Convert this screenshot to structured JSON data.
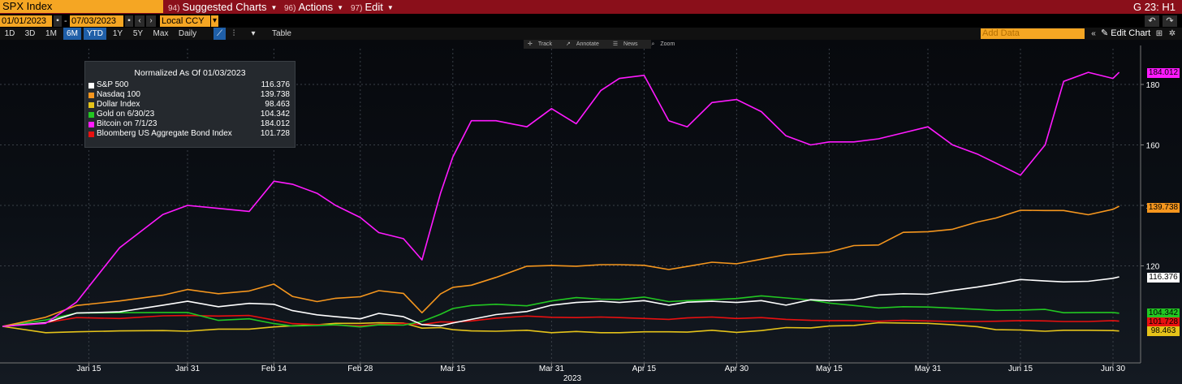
{
  "toolbar": {
    "security": "SPX Index",
    "menus": [
      {
        "num": "94)",
        "label": "Suggested Charts"
      },
      {
        "num": "96)",
        "label": "Actions"
      },
      {
        "num": "97)",
        "label": "Edit"
      }
    ],
    "page_id": "G 23: H1"
  },
  "date_range": {
    "start": "01/01/2023",
    "end": "07/03/2023",
    "currency": "Local CCY"
  },
  "periods": [
    {
      "label": "1D",
      "active": false
    },
    {
      "label": "3D",
      "active": false
    },
    {
      "label": "1M",
      "active": false
    },
    {
      "label": "6M",
      "active": true
    },
    {
      "label": "YTD",
      "active": true
    },
    {
      "label": "1Y",
      "active": false
    },
    {
      "label": "5Y",
      "active": false
    },
    {
      "label": "Max",
      "active": false
    }
  ],
  "frequency": "Daily",
  "table_label": "Table",
  "add_data_placeholder": "Add Data",
  "edit_chart_label": "Edit Chart",
  "chart_tools": [
    "Track",
    "Annotate",
    "News",
    "Zoom"
  ],
  "chart_data": {
    "type": "line",
    "title": "Normalized As Of 01/03/2023",
    "xlabel": "2023",
    "x_ticks": [
      "Jan 15",
      "Jan 31",
      "Feb 14",
      "Feb 28",
      "Mar 15",
      "Mar 31",
      "Apr 15",
      "Apr 30",
      "May 15",
      "May 31",
      "Jun 15",
      "Jun 30"
    ],
    "y_ticks": [
      120,
      140,
      160,
      180
    ],
    "ylim": [
      94,
      190
    ],
    "grid": true,
    "legend_position": "top-left",
    "x_dates": [
      "2023-01-01",
      "2023-01-08",
      "2023-01-13",
      "2023-01-20",
      "2023-01-27",
      "2023-01-31",
      "2023-02-05",
      "2023-02-10",
      "2023-02-14",
      "2023-02-17",
      "2023-02-21",
      "2023-02-24",
      "2023-02-28",
      "2023-03-03",
      "2023-03-07",
      "2023-03-10",
      "2023-03-13",
      "2023-03-15",
      "2023-03-18",
      "2023-03-22",
      "2023-03-27",
      "2023-03-31",
      "2023-04-04",
      "2023-04-08",
      "2023-04-11",
      "2023-04-15",
      "2023-04-19",
      "2023-04-22",
      "2023-04-26",
      "2023-04-30",
      "2023-05-04",
      "2023-05-08",
      "2023-05-12",
      "2023-05-15",
      "2023-05-19",
      "2023-05-23",
      "2023-05-27",
      "2023-05-31",
      "2023-06-04",
      "2023-06-08",
      "2023-06-11",
      "2023-06-15",
      "2023-06-19",
      "2023-06-22",
      "2023-06-26",
      "2023-06-30",
      "2023-07-01"
    ],
    "series": [
      {
        "name": "S&P 500",
        "color": "#ffffff",
        "last": "116.376",
        "values": [
          100,
          101.2,
          104.4,
          104.8,
          107.0,
          108.3,
          106.5,
          107.6,
          107.3,
          105.2,
          103.8,
          103.2,
          102.5,
          104.3,
          103.2,
          100.6,
          100.2,
          101.1,
          102.3,
          103.9,
          104.9,
          107.0,
          107.9,
          108.3,
          107.9,
          108.5,
          107.0,
          108.0,
          108.3,
          107.9,
          108.5,
          107.0,
          108.8,
          108.5,
          108.8,
          110.4,
          110.8,
          110.6,
          111.9,
          113.0,
          114.0,
          115.5,
          115.0,
          114.7,
          114.9,
          115.9,
          116.376
        ]
      },
      {
        "name": "Nasdaq 100",
        "color": "#f5961e",
        "last": "139.738",
        "values": [
          100,
          103.0,
          106.9,
          108.4,
          110.3,
          112.2,
          110.8,
          111.7,
          114.0,
          109.9,
          108.2,
          109.3,
          109.8,
          111.8,
          110.9,
          104.5,
          110.7,
          112.9,
          113.6,
          116.2,
          119.9,
          120.1,
          119.9,
          120.4,
          120.4,
          120.2,
          118.8,
          119.8,
          121.2,
          120.7,
          122.2,
          123.7,
          124.1,
          124.6,
          126.7,
          126.9,
          131.1,
          131.3,
          132.1,
          134.5,
          135.8,
          138.4,
          138.3,
          138.3,
          136.9,
          138.7,
          139.738
        ]
      },
      {
        "name": "Dollar Index",
        "color": "#e5c31a",
        "last": "98.463",
        "values": [
          100,
          97.9,
          98.2,
          98.5,
          98.6,
          98.4,
          99.1,
          99.1,
          99.8,
          100.2,
          100.5,
          101.0,
          101.0,
          101.2,
          101.1,
          99.4,
          99.6,
          98.9,
          98.5,
          98.4,
          98.7,
          97.9,
          98.3,
          97.9,
          97.9,
          98.2,
          98.2,
          98.1,
          98.7,
          98.0,
          98.6,
          99.6,
          99.5,
          100.1,
          100.3,
          101.2,
          101.1,
          101.0,
          100.5,
          99.9,
          98.9,
          98.8,
          98.4,
          98.7,
          98.7,
          98.6,
          98.463
        ]
      },
      {
        "name": "Gold on 6/30/23",
        "color": "#22c722",
        "last": "104.342",
        "values": [
          100,
          102.1,
          104.4,
          104.5,
          104.6,
          104.6,
          102.0,
          102.5,
          100.9,
          100.1,
          100.3,
          100.5,
          99.8,
          100.5,
          100.4,
          101.6,
          104.0,
          105.9,
          106.9,
          107.3,
          106.8,
          108.4,
          109.5,
          109.0,
          108.9,
          109.7,
          108.2,
          108.5,
          108.8,
          109.2,
          110.1,
          109.4,
          108.7,
          107.7,
          106.9,
          106.1,
          106.5,
          106.4,
          106.0,
          105.6,
          105.3,
          105.4,
          105.6,
          104.5,
          104.6,
          104.6,
          104.342
        ]
      },
      {
        "name": "Bitcoin on 7/1/23",
        "color": "#ff1aff",
        "last": "184.012",
        "values": [
          100,
          101.0,
          108.0,
          126.0,
          137.0,
          140.0,
          139.0,
          138.0,
          148.0,
          147.0,
          144.0,
          140.0,
          136.0,
          131.0,
          129.0,
          122.0,
          144.0,
          156.0,
          168.0,
          168.0,
          166.0,
          172.0,
          167.0,
          178.0,
          182.0,
          183.0,
          168.0,
          166.0,
          174.0,
          175.0,
          171.0,
          163.0,
          160.0,
          161.0,
          161.0,
          162.0,
          164.0,
          166.0,
          160.0,
          157.0,
          154.0,
          150.0,
          160.0,
          181.0,
          184.0,
          182.0,
          184.012
        ]
      },
      {
        "name": "Bloomberg US Aggregate Bond Index",
        "color": "#e81010",
        "last": "101.728",
        "values": [
          100,
          101.2,
          102.9,
          102.6,
          103.5,
          103.6,
          103.4,
          103.6,
          102.1,
          100.9,
          100.6,
          100.4,
          100.2,
          100.7,
          101.0,
          100.6,
          101.5,
          101.4,
          101.8,
          102.7,
          103.4,
          103.0,
          102.9,
          103.1,
          102.9,
          102.6,
          102.3,
          102.8,
          103.1,
          102.6,
          102.9,
          102.3,
          102.0,
          101.9,
          101.9,
          101.7,
          102.0,
          101.8,
          101.6,
          101.6,
          101.7,
          101.9,
          101.8,
          101.6,
          101.6,
          101.9,
          101.728
        ]
      }
    ]
  },
  "right_tags": {
    "bitcoin": "184.012",
    "nasdaq": "139.738",
    "spx": "116.376",
    "gold": "104.342",
    "bond": "101.728",
    "dollar": "98.463"
  }
}
